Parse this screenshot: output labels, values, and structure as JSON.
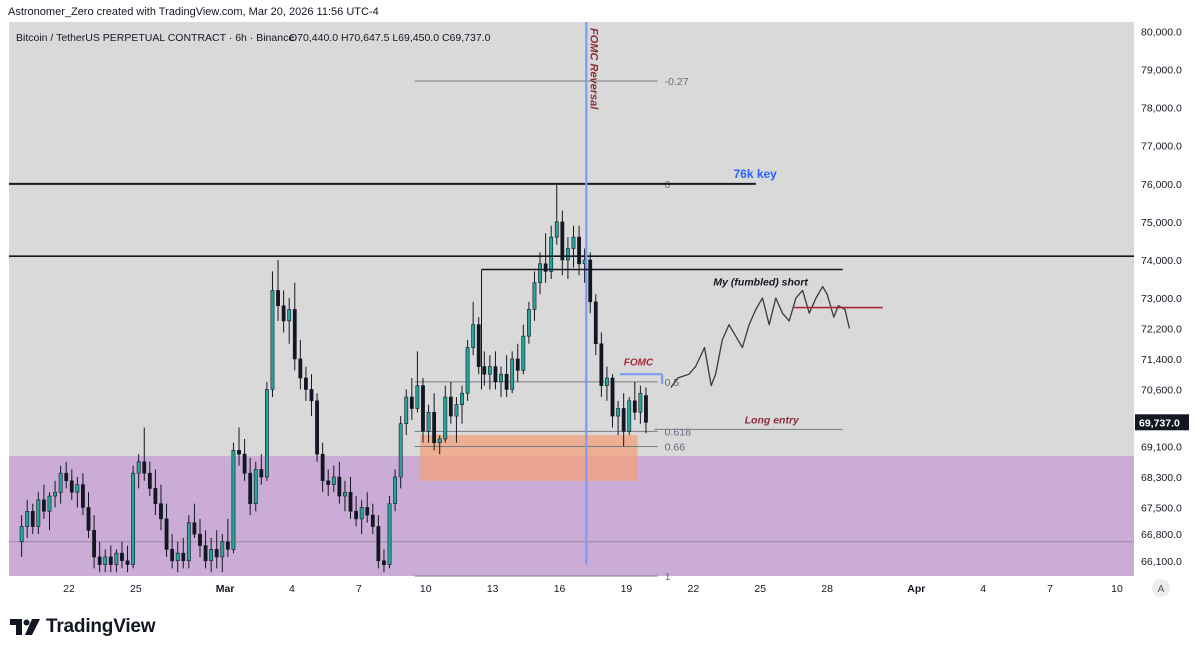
{
  "credit": "Astronomer_Zero created with TradingView.com, Mar 20, 2026 11:56 UTC-4",
  "header": {
    "symbol": "Bitcoin / TetherUS PERPETUAL CONTRACT · 6h · Binance",
    "ohlc": "O70,440.0  H70,647.5  L69,450.0  C69,737.0"
  },
  "brand": "TradingView",
  "chart_data": {
    "type": "candlestick",
    "symbol": "Bitcoin / TetherUS PERPETUAL CONTRACT",
    "interval": "6h",
    "exchange": "Binance",
    "ohlc": {
      "open": 70440.0,
      "high": 70647.5,
      "low": 69450.0,
      "close": 69737.0
    },
    "ylim": [
      65700,
      80250
    ],
    "y_ticks": [
      "80,000.0",
      "79,000.0",
      "78,000.0",
      "77,000.0",
      "76,000.0",
      "75,000.0",
      "74,000.0",
      "73,000.0",
      "72,200.0",
      "71,400.0",
      "70,600.0",
      "69,100.0",
      "68,300.0",
      "67,500.0",
      "66,800.0",
      "66,100.0"
    ],
    "y_tick_values": [
      80000,
      79000,
      78000,
      77000,
      76000,
      75000,
      74000,
      73000,
      72200,
      71400,
      70600,
      69100,
      68300,
      67500,
      66800,
      66100
    ],
    "x_ticks": [
      "22",
      "25",
      "Mar",
      "4",
      "7",
      "10",
      "13",
      "16",
      "19",
      "22",
      "25",
      "28",
      "Apr",
      "4",
      "7",
      "10"
    ],
    "x_tick_dates": [
      "2026-02-22",
      "2026-02-25",
      "2026-03-01",
      "2026-03-04",
      "2026-03-07",
      "2026-03-10",
      "2026-03-13",
      "2026-03-16",
      "2026-03-19",
      "2026-03-22",
      "2026-03-25",
      "2026-03-28",
      "2026-04-01",
      "2026-04-04",
      "2026-04-07",
      "2026-04-10"
    ],
    "last_price_label": "69,737.0",
    "candles": [
      [
        66600,
        67300,
        66200,
        67000
      ],
      [
        67000,
        67700,
        66700,
        67400
      ],
      [
        67400,
        67600,
        66800,
        67000
      ],
      [
        67000,
        67900,
        66800,
        67700
      ],
      [
        67700,
        68100,
        67200,
        67400
      ],
      [
        67400,
        67900,
        66900,
        67800
      ],
      [
        67800,
        68200,
        67500,
        67900
      ],
      [
        67900,
        68600,
        67600,
        68400
      ],
      [
        68400,
        68700,
        68000,
        68200
      ],
      [
        68200,
        68500,
        67700,
        67900
      ],
      [
        67900,
        68300,
        67500,
        68100
      ],
      [
        68100,
        68400,
        67300,
        67500
      ],
      [
        67500,
        67900,
        66700,
        66900
      ],
      [
        66900,
        67300,
        65900,
        66200
      ],
      [
        66200,
        66600,
        65800,
        66000
      ],
      [
        66000,
        66400,
        65800,
        66200
      ],
      [
        66200,
        66500,
        65800,
        66000
      ],
      [
        66000,
        66400,
        65800,
        66300
      ],
      [
        66300,
        66600,
        65900,
        66100
      ],
      [
        66100,
        66500,
        65800,
        66000
      ],
      [
        66000,
        68600,
        65900,
        68400
      ],
      [
        68400,
        68900,
        68000,
        68700
      ],
      [
        68700,
        69600,
        68200,
        68400
      ],
      [
        68400,
        68700,
        67800,
        68000
      ],
      [
        68000,
        68500,
        67300,
        67600
      ],
      [
        67600,
        68100,
        66900,
        67200
      ],
      [
        67200,
        67600,
        66200,
        66400
      ],
      [
        66400,
        66800,
        65900,
        66100
      ],
      [
        66100,
        66600,
        65800,
        66300
      ],
      [
        66300,
        66700,
        65900,
        66100
      ],
      [
        66100,
        67300,
        65900,
        67100
      ],
      [
        67100,
        67600,
        66700,
        66800
      ],
      [
        66800,
        67200,
        66200,
        66500
      ],
      [
        66500,
        66900,
        65900,
        66100
      ],
      [
        66100,
        66700,
        65800,
        66400
      ],
      [
        66400,
        66900,
        65900,
        66200
      ],
      [
        66200,
        66800,
        65800,
        66600
      ],
      [
        66600,
        67200,
        66200,
        66400
      ],
      [
        66400,
        69200,
        66300,
        69000
      ],
      [
        69000,
        69600,
        68600,
        68900
      ],
      [
        68900,
        69300,
        68200,
        68400
      ],
      [
        68400,
        68800,
        67300,
        67600
      ],
      [
        67600,
        68700,
        67400,
        68500
      ],
      [
        68500,
        68900,
        68100,
        68300
      ],
      [
        68300,
        70800,
        68200,
        70600
      ],
      [
        70600,
        73700,
        70400,
        73200
      ],
      [
        73200,
        74000,
        72400,
        72800
      ],
      [
        72800,
        73200,
        72100,
        72400
      ],
      [
        72400,
        73000,
        71800,
        72700
      ],
      [
        72700,
        73400,
        71100,
        71400
      ],
      [
        71400,
        71900,
        70600,
        70900
      ],
      [
        70900,
        71200,
        70300,
        70600
      ],
      [
        70600,
        71000,
        69900,
        70300
      ],
      [
        70300,
        70500,
        68700,
        68900
      ],
      [
        68900,
        69200,
        67900,
        68200
      ],
      [
        68200,
        68500,
        67800,
        68100
      ],
      [
        68100,
        68600,
        67900,
        68300
      ],
      [
        68300,
        68700,
        67600,
        67800
      ],
      [
        67800,
        68200,
        67400,
        67900
      ],
      [
        67900,
        68300,
        67200,
        67400
      ],
      [
        67400,
        67800,
        67000,
        67200
      ],
      [
        67200,
        67700,
        66800,
        67500
      ],
      [
        67500,
        67900,
        67100,
        67300
      ],
      [
        67300,
        67600,
        66800,
        67000
      ],
      [
        67000,
        67300,
        65900,
        66100
      ],
      [
        66100,
        66400,
        65800,
        66000
      ],
      [
        66000,
        67800,
        65900,
        67600
      ],
      [
        67600,
        68500,
        67400,
        68300
      ],
      [
        68300,
        69900,
        68000,
        69700
      ],
      [
        69700,
        70600,
        69400,
        70400
      ],
      [
        70400,
        70900,
        69800,
        70100
      ],
      [
        70100,
        71600,
        70000,
        70700
      ],
      [
        70700,
        70900,
        69200,
        69500
      ],
      [
        69500,
        70200,
        69200,
        70000
      ],
      [
        70000,
        70500,
        69000,
        69200
      ],
      [
        69200,
        69400,
        68900,
        69300
      ],
      [
        69300,
        70700,
        69200,
        70400
      ],
      [
        70400,
        70800,
        69700,
        69900
      ],
      [
        69900,
        70400,
        69200,
        70200
      ],
      [
        70200,
        70700,
        69700,
        70500
      ],
      [
        70500,
        71900,
        70300,
        71700
      ],
      [
        71700,
        72900,
        71500,
        72300
      ],
      [
        72300,
        72500,
        71000,
        71200
      ],
      [
        71200,
        71600,
        70700,
        71000
      ],
      [
        71000,
        71500,
        70600,
        71200
      ],
      [
        71200,
        71600,
        70600,
        70800
      ],
      [
        70800,
        71200,
        70400,
        71000
      ],
      [
        71000,
        71500,
        70400,
        70600
      ],
      [
        70600,
        71600,
        70500,
        71400
      ],
      [
        71400,
        71800,
        70800,
        71100
      ],
      [
        71100,
        72300,
        71000,
        72000
      ],
      [
        72000,
        72900,
        71800,
        72700
      ],
      [
        72700,
        73700,
        72400,
        73400
      ],
      [
        73400,
        74200,
        73100,
        73900
      ],
      [
        73900,
        74700,
        73400,
        73700
      ],
      [
        73700,
        74900,
        73500,
        74600
      ],
      [
        74600,
        76000,
        74400,
        75000
      ],
      [
        75000,
        75300,
        73600,
        74000
      ],
      [
        74000,
        74600,
        73500,
        74300
      ],
      [
        74300,
        74900,
        73800,
        74600
      ],
      [
        74600,
        74900,
        73600,
        73900
      ],
      [
        73900,
        74300,
        73400,
        74000
      ],
      [
        74000,
        74200,
        72600,
        72900
      ],
      [
        72900,
        73100,
        71500,
        71800
      ],
      [
        71800,
        72100,
        70400,
        70700
      ],
      [
        70700,
        71200,
        70300,
        70900
      ],
      [
        70900,
        71000,
        69600,
        69900
      ],
      [
        69900,
        70300,
        69400,
        70100
      ],
      [
        70100,
        70500,
        69100,
        69500
      ],
      [
        69500,
        70400,
        69400,
        70300
      ],
      [
        70300,
        70800,
        69800,
        70000
      ],
      [
        70000,
        70700,
        69700,
        70500
      ],
      [
        70440,
        70647.5,
        69450,
        69737
      ]
    ],
    "levels": [
      {
        "value": 76000
      },
      {
        "value": 74100
      }
    ],
    "fibonacci": [
      {
        "ratio": "-0.27",
        "value": 78700
      },
      {
        "ratio": "0",
        "value": 76000
      },
      {
        "ratio": "0.5",
        "value": 70800
      },
      {
        "ratio": "0.618",
        "value": 69500
      },
      {
        "ratio": "0.66",
        "value": 69100
      },
      {
        "ratio": "1",
        "value": 65700
      }
    ],
    "annotations": {
      "key_level": "76k key",
      "fomc_reversal": "FOMC Reversal",
      "short_label": "My (fumbled) short",
      "fomc_label": "FOMC",
      "long_entry": "Long entry",
      "time_axis_mark": "A"
    },
    "colors": {
      "up": "#26a69a",
      "down": "#131722",
      "key_text": "#2962ff",
      "annotation": "#8b2f3a",
      "zone": "#c7a3d6",
      "demand": "#f2a07b"
    }
  }
}
